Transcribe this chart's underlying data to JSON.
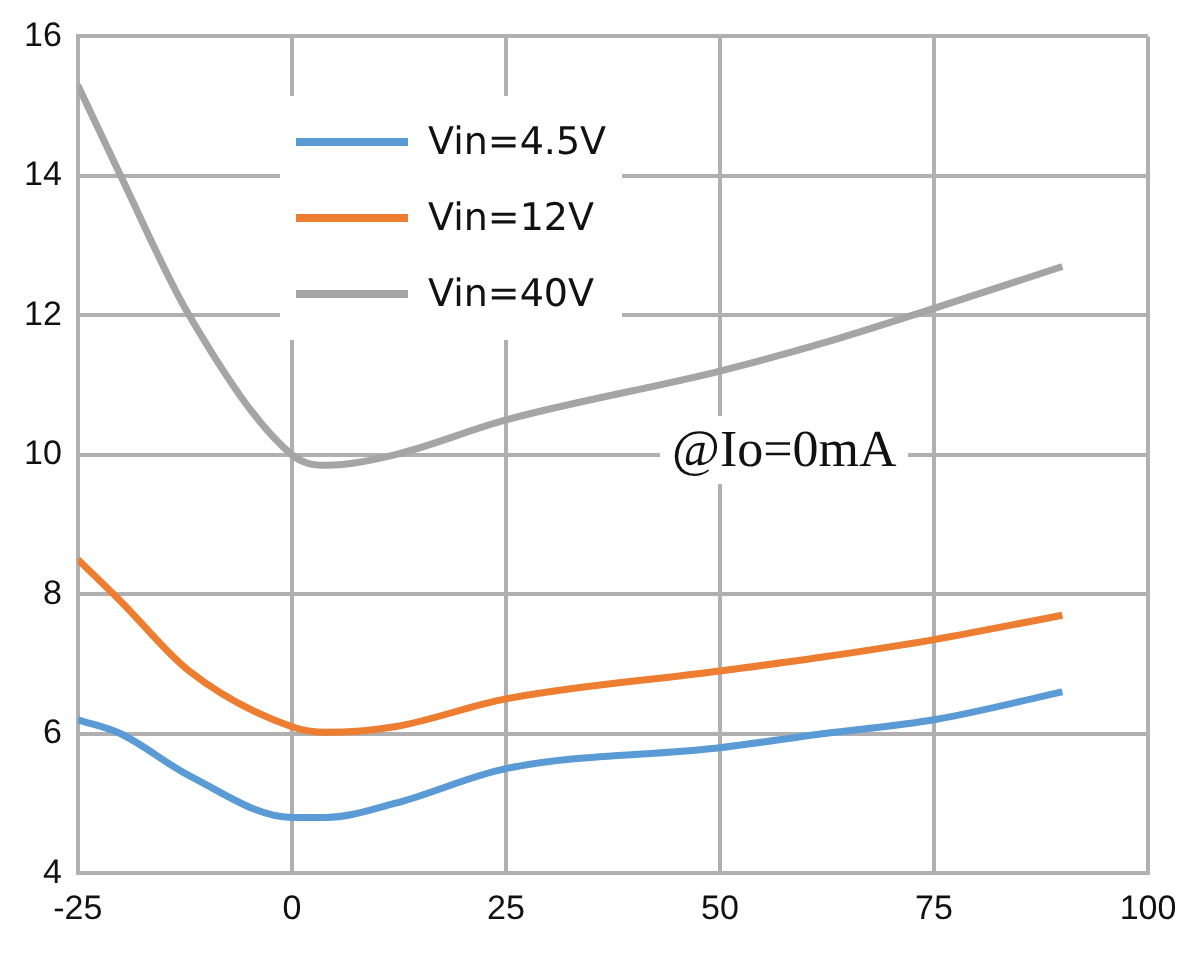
{
  "chart_data": {
    "type": "line",
    "x": [
      -25,
      -20,
      -12,
      0,
      4,
      12,
      25,
      50,
      62,
      75,
      90
    ],
    "series": [
      {
        "name": "Vin=4.5V",
        "color": "#5b9bd5",
        "values": [
          6.2,
          6.0,
          5.4,
          4.8,
          4.8,
          5.0,
          5.5,
          5.8,
          6.0,
          6.2,
          6.6
        ]
      },
      {
        "name": "Vin=12V",
        "color": "#ed7d31",
        "values": [
          8.5,
          7.9,
          6.9,
          6.1,
          6.02,
          6.1,
          6.5,
          6.9,
          7.1,
          7.35,
          7.7
        ]
      },
      {
        "name": "Vin=40V",
        "color": "#a5a5a5",
        "values": [
          15.3,
          14.0,
          12.0,
          10.0,
          9.85,
          10.0,
          10.5,
          11.2,
          11.6,
          12.1,
          12.7
        ]
      }
    ],
    "xlim": [
      -25,
      100
    ],
    "xticks": [
      -25,
      0,
      25,
      50,
      75,
      100
    ],
    "ylim": [
      4,
      16
    ],
    "yticks": [
      4,
      6,
      8,
      10,
      12,
      14,
      16
    ],
    "grid": true,
    "legend": "top left",
    "marker": "none",
    "line_style": "solid",
    "annotations": [
      "@Io=0mA"
    ]
  }
}
